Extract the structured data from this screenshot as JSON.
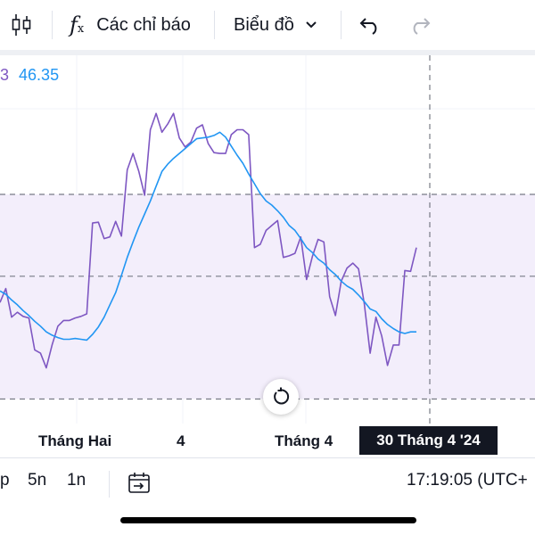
{
  "toolbar": {
    "indicators_label": "Các chỉ báo",
    "chart_type_label": "Biểu đồ"
  },
  "legend": {
    "name_fragment": "3",
    "value": "46.35"
  },
  "colors": {
    "price_line": "#7e57c2",
    "ma_line": "#2196f3",
    "band_fill": "#f3eefb",
    "dashed_lines": "#787b86"
  },
  "x_axis": {
    "labels": [
      "Tháng Hai",
      "4",
      "Tháng 4"
    ],
    "crosshair_label": "30 Tháng 4 '24"
  },
  "bottom_bar": {
    "intervals": [
      "p",
      "5n",
      "1n"
    ],
    "time_text": "17:19:05 (UTC+"
  },
  "chart_data": {
    "type": "line",
    "series": [
      {
        "values": [
          41.8,
          43.5,
          40.0,
          40.6,
          40.1,
          39.9,
          36.0,
          35.6,
          33.8,
          36.6,
          38.9,
          39.6,
          39.6,
          39.9,
          40.1,
          40.4,
          51.5,
          51.6,
          49.6,
          49.8,
          51.7,
          49.9,
          58.0,
          60.0,
          57.8,
          54.9,
          62.9,
          64.9,
          62.6,
          63.6,
          64.9,
          61.9,
          60.8,
          61.4,
          63.1,
          63.5,
          61.2,
          60.1,
          60.0,
          60.0,
          62.3,
          62.9,
          62.9,
          62.3,
          48.5,
          48.9,
          50.6,
          51.2,
          51.8,
          47.3,
          47.5,
          47.8,
          49.8,
          44.6,
          47.4,
          49.5,
          49.2,
          42.5,
          40.2,
          44.4,
          46.0,
          46.6,
          45.9,
          41.6,
          35.6,
          40.0,
          37.7,
          34.1,
          36.6,
          36.6,
          45.7,
          45.6,
          48.5
        ]
      },
      {
        "values": [
          43.2,
          42.8,
          42.1,
          41.5,
          40.8,
          40.2,
          39.5,
          38.9,
          38.2,
          37.8,
          37.5,
          37.3,
          37.3,
          37.4,
          37.3,
          37.2,
          37.9,
          38.8,
          40.0,
          41.5,
          43.0,
          45.1,
          47.3,
          49.2,
          51.0,
          52.6,
          54.2,
          56.0,
          57.8,
          58.7,
          59.4,
          60.0,
          60.6,
          61.2,
          61.8,
          61.9,
          62.0,
          62.2,
          62.6,
          62.0,
          60.9,
          59.8,
          58.8,
          57.5,
          56.3,
          55.1,
          54.2,
          53.7,
          53.0,
          52.2,
          51.2,
          50.6,
          49.6,
          48.5,
          47.9,
          47.1,
          46.6,
          45.8,
          45.2,
          44.4,
          43.8,
          43.4,
          42.7,
          41.9,
          41.0,
          40.7,
          39.8,
          39.1,
          38.6,
          38.2,
          38.0,
          38.2,
          38.2
        ]
      }
    ],
    "band_upper": 55,
    "band_lower": 30,
    "reference_line": 45,
    "ylim": [
      27,
      72
    ]
  }
}
